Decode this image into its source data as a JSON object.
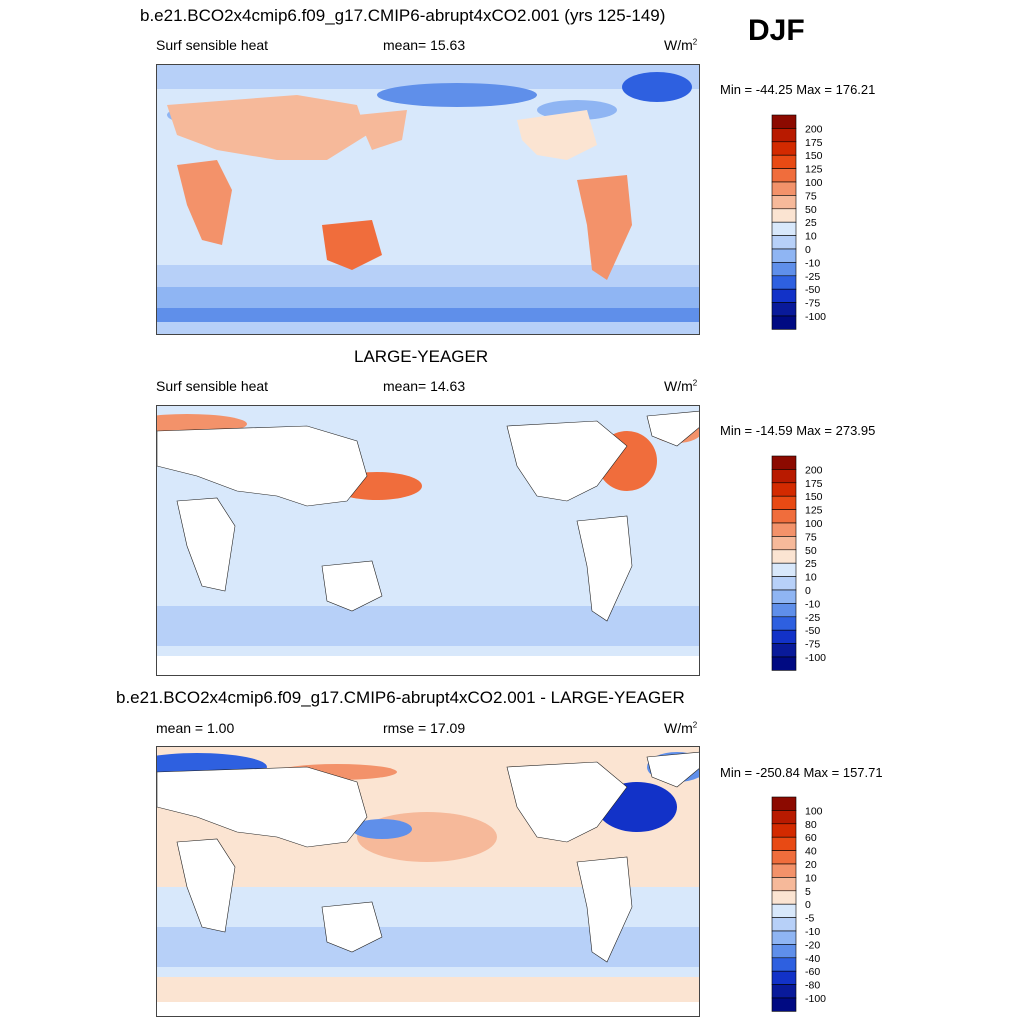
{
  "season": "DJF",
  "panels": [
    {
      "title": "b.e21.BCO2x4cmip6.f09_g17.CMIP6-abrupt4xCO2.001 (yrs 125-149)",
      "left": "Surf sensible heat",
      "center": "mean=  15.63",
      "units": "W/m",
      "units_sup": "2",
      "minmax": "Min = -44.25 Max = 176.21",
      "colorbar": {
        "levels": [
          "200",
          "175",
          "150",
          "125",
          "100",
          "75",
          "50",
          "25",
          "10",
          "0",
          "-10",
          "-25",
          "-50",
          "-75",
          "-100"
        ],
        "colors": [
          "#8c0a00",
          "#b81a00",
          "#d32a00",
          "#e84a14",
          "#f06d3c",
          "#f3926a",
          "#f6b99a",
          "#fbe4d2",
          "#d8e8fb",
          "#b7d0f8",
          "#8fb5f3",
          "#5f8fea",
          "#2e60e0",
          "#1232c8",
          "#091a9a",
          "#000a82"
        ]
      }
    },
    {
      "title": "LARGE-YEAGER",
      "left": "Surf sensible heat",
      "center": "mean=  14.63",
      "units": "W/m",
      "units_sup": "2",
      "minmax": "Min = -14.59 Max = 273.95",
      "colorbar": {
        "levels": [
          "200",
          "175",
          "150",
          "125",
          "100",
          "75",
          "50",
          "25",
          "10",
          "0",
          "-10",
          "-25",
          "-50",
          "-75",
          "-100"
        ],
        "colors": [
          "#8c0a00",
          "#b81a00",
          "#d32a00",
          "#e84a14",
          "#f06d3c",
          "#f3926a",
          "#f6b99a",
          "#fbe4d2",
          "#d8e8fb",
          "#b7d0f8",
          "#8fb5f3",
          "#5f8fea",
          "#2e60e0",
          "#1232c8",
          "#091a9a",
          "#000a82"
        ]
      }
    },
    {
      "title": "b.e21.BCO2x4cmip6.f09_g17.CMIP6-abrupt4xCO2.001 - LARGE-YEAGER",
      "left": "mean =   1.00",
      "center": "rmse =  17.09",
      "units": "W/m",
      "units_sup": "2",
      "minmax": "Min = -250.84 Max = 157.71",
      "colorbar": {
        "levels": [
          "100",
          "80",
          "60",
          "40",
          "20",
          "10",
          "5",
          "0",
          "-5",
          "-10",
          "-20",
          "-40",
          "-60",
          "-80",
          "-100"
        ],
        "colors": [
          "#8c0a00",
          "#b81a00",
          "#d32a00",
          "#e84a14",
          "#f06d3c",
          "#f3926a",
          "#f6b99a",
          "#fbe4d2",
          "#d8e8fb",
          "#b7d0f8",
          "#8fb5f3",
          "#5f8fea",
          "#2e60e0",
          "#1232c8",
          "#091a9a",
          "#000a82"
        ]
      }
    }
  ]
}
